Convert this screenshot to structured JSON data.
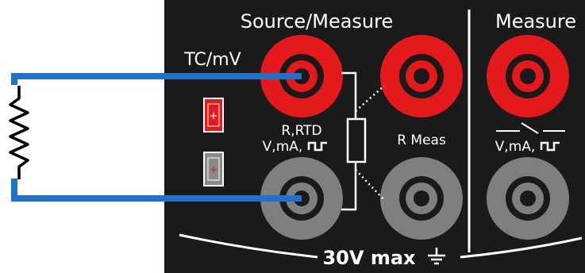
{
  "labels": {
    "source_measure": "Source/Measure",
    "measure": "Measure",
    "tc_mv": "TC/mV",
    "r_rtd": "R,RTD",
    "v_ma_left": "V,mA,",
    "r_meas": "R Meas",
    "v_ma_right": "V,mA,",
    "voltage_max": "30V max",
    "plus_red": "+",
    "plus_gray": "+"
  },
  "colors": {
    "panel": "#1a1a1a",
    "red_jack": "#e3191b",
    "gray_jack": "#7f7f7f",
    "wire": "#1e73c8",
    "white": "#ffffff"
  },
  "icons": {
    "ground": "ground-icon",
    "square_wave": "square-wave-icon",
    "switch": "switch-icon",
    "resistor": "resistor-icon"
  }
}
